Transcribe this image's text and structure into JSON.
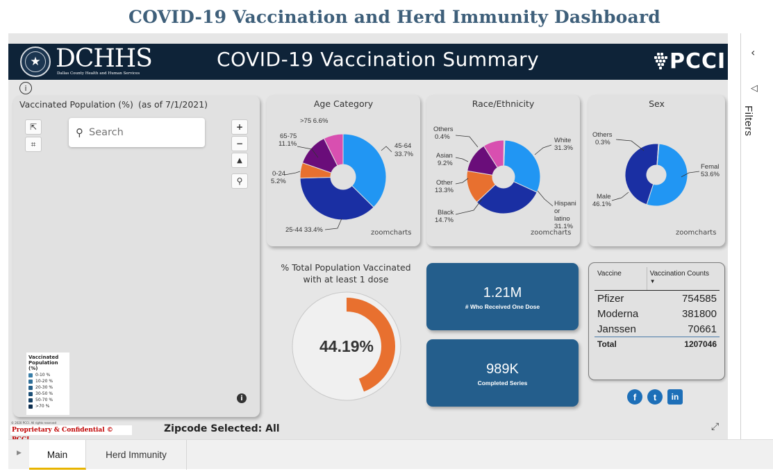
{
  "page": {
    "title": "COVID-19 Vaccination and Herd Immunity Dashboard"
  },
  "banner": {
    "brand": "DCHHS",
    "brand_sub": "Dallas County Health and Human Services",
    "title": "COVID-19 Vaccination Summary",
    "partner": "PCCI"
  },
  "map": {
    "title": "Vaccinated Population (%)",
    "date": "(as of 7/1/2021)",
    "search_placeholder": "Search",
    "legend_title": "Vaccinated Population (%)",
    "legend": [
      {
        "label": "0-10 %",
        "color": "#3a7ea8"
      },
      {
        "label": "10-20 %",
        "color": "#2f6f98"
      },
      {
        "label": "20-30 %",
        "color": "#265f88"
      },
      {
        "label": "30-50 %",
        "color": "#1d4f76"
      },
      {
        "label": "50-70 %",
        "color": "#153f63"
      },
      {
        "label": ">70 %",
        "color": "#0e2f50"
      }
    ],
    "copyright": "© 2020 PCCI. All rights reserved",
    "confidential": "Proprietary & Confidential © PCCI",
    "zipcode": "Zipcode Selected: All"
  },
  "age": {
    "title": "Age Category",
    "credit": "zoomcharts",
    "labels": {
      "a75": ">75 6.6%",
      "a6575": "65-75",
      "a6575v": "11.1%",
      "a024": "0-24",
      "a024v": "5.2%",
      "a4564": "45-64",
      "a4564v": "33.7%",
      "a2544": "25-44 33.4%"
    }
  },
  "race": {
    "title": "Race/Ethnicity",
    "credit": "zoomcharts",
    "labels": {
      "others": "Others",
      "others_v": "0.4%",
      "asian": "Asian",
      "asian_v": "9.2%",
      "other": "Other",
      "other_v": "13.3%",
      "black": "Black",
      "black_v": "14.7%",
      "white": "White",
      "white_v": "31.3%",
      "hisp1": "Hispani",
      "hisp2": "or",
      "hisp3": "latino",
      "hisp_v": "31.1%"
    }
  },
  "sex": {
    "title": "Sex",
    "credit": "zoomcharts",
    "labels": {
      "others": "Others",
      "others_v": "0.3%",
      "female": "Femal",
      "female_v": "53.6%",
      "male": "Male",
      "male_v": "46.1%"
    }
  },
  "chart_data": [
    {
      "type": "pie",
      "title": "Age Category",
      "categories": [
        "45-64",
        "25-44",
        "0-24",
        "65-75",
        ">75"
      ],
      "values": [
        33.7,
        33.4,
        5.2,
        11.1,
        6.6
      ],
      "colors": [
        "#2196f3",
        "#1a2fa3",
        "#e8702f",
        "#6a0d7a",
        "#d84fb0"
      ]
    },
    {
      "type": "pie",
      "title": "Race/Ethnicity",
      "categories": [
        "White",
        "Hispani or latino",
        "Black",
        "Other",
        "Asian",
        "Others"
      ],
      "values": [
        31.3,
        31.1,
        14.7,
        13.3,
        9.2,
        0.4
      ],
      "colors": [
        "#2196f3",
        "#1a2fa3",
        "#e8702f",
        "#6a0d7a",
        "#d84fb0",
        "#cfcfcf"
      ]
    },
    {
      "type": "pie",
      "title": "Sex",
      "categories": [
        "Femal",
        "Male",
        "Others"
      ],
      "values": [
        53.6,
        46.1,
        0.3
      ],
      "colors": [
        "#2196f3",
        "#1a2fa3",
        "#cfcfcf"
      ]
    },
    {
      "type": "table",
      "title": "Vaccine",
      "columns": [
        "Vaccine",
        "Vaccination Counts"
      ],
      "rows": [
        [
          "Pfizer",
          754585
        ],
        [
          "Moderna",
          381800
        ],
        [
          "Janssen",
          70661
        ],
        [
          "Total",
          1207046
        ]
      ]
    }
  ],
  "kpi": {
    "title_line1": "% Total Population Vaccinated",
    "title_line2": "with at least 1 dose",
    "percent_text": "44.19%",
    "percent_value": 44.19,
    "gauge_color": "#e8702f"
  },
  "tiles": {
    "one_dose_value": "1.21M",
    "one_dose_label": "# Who Received One Dose",
    "completed_value": "989K",
    "completed_label": "Completed Series"
  },
  "vaccine_table": {
    "col1": "Vaccine",
    "col2": "Vaccination Counts",
    "rows": [
      {
        "name": "Pfizer",
        "count": "754585"
      },
      {
        "name": "Moderna",
        "count": "381800"
      },
      {
        "name": "Janssen",
        "count": "70661"
      }
    ],
    "total_label": "Total",
    "total_value": "1207046"
  },
  "social": {
    "facebook": "f",
    "twitter": "t",
    "linkedin": "in"
  },
  "filters": {
    "label": "Filters"
  },
  "tabs": [
    {
      "label": "Main",
      "active": true
    },
    {
      "label": "Herd Immunity",
      "active": false
    }
  ],
  "colors": {
    "banner": "#0e2338",
    "tile": "#245e8c",
    "title": "#3e5f7a",
    "tab_accent": "#e8b400"
  }
}
